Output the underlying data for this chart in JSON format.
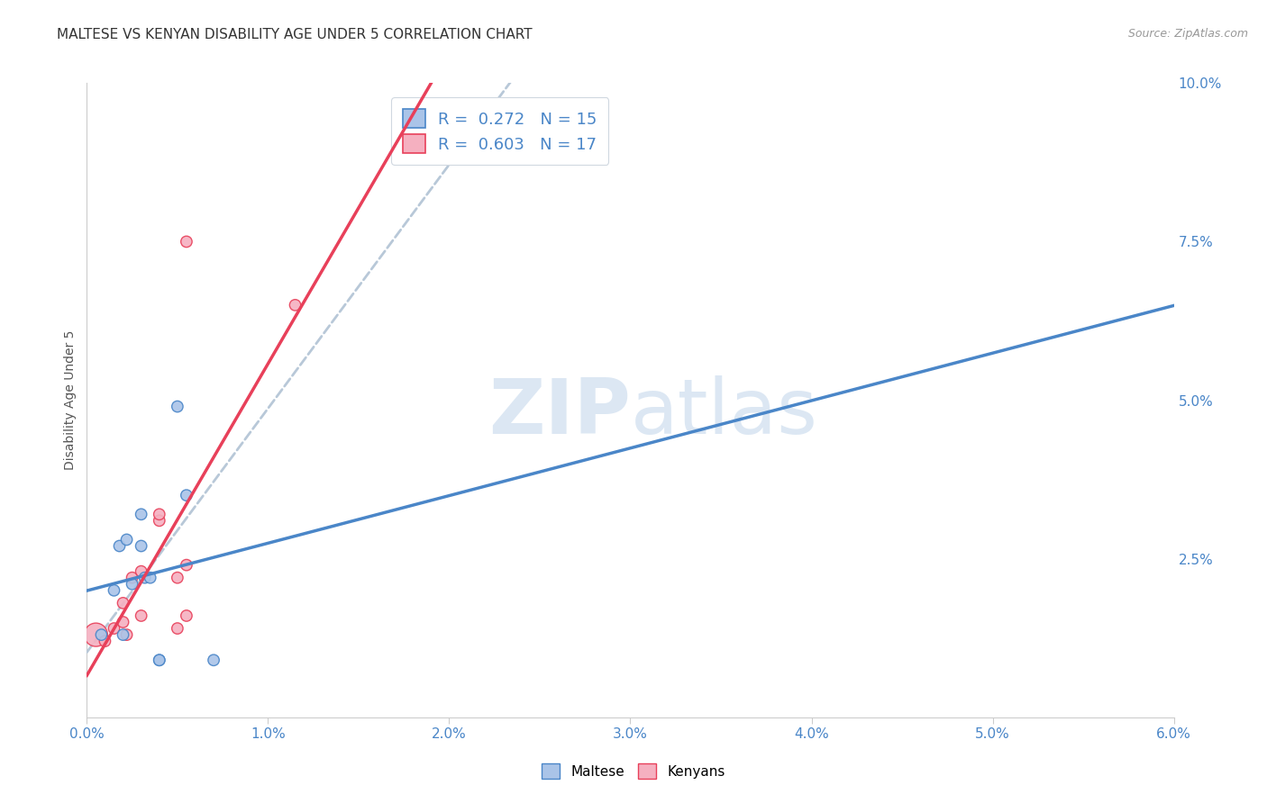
{
  "title": "MALTESE VS KENYAN DISABILITY AGE UNDER 5 CORRELATION CHART",
  "source": "Source: ZipAtlas.com",
  "ylabel": "Disability Age Under 5",
  "xlim": [
    0.0,
    0.06
  ],
  "ylim": [
    0.0,
    0.1
  ],
  "legend_bottom": [
    "Maltese",
    "Kenyans"
  ],
  "maltese_R": "0.272",
  "maltese_N": "15",
  "kenyan_R": "0.603",
  "kenyan_N": "17",
  "maltese_color": "#aac4e8",
  "kenyan_color": "#f5b0c0",
  "maltese_line_color": "#4a86c8",
  "kenyan_line_color": "#e8405a",
  "regression_line_color": "#b8c8d8",
  "background_color": "#ffffff",
  "grid_color": "#c8d4dc",
  "maltese_points_x": [
    0.0008,
    0.0015,
    0.0018,
    0.002,
    0.0022,
    0.0025,
    0.003,
    0.003,
    0.0032,
    0.0035,
    0.004,
    0.004,
    0.005,
    0.0055,
    0.007
  ],
  "maltese_points_y": [
    0.013,
    0.02,
    0.027,
    0.013,
    0.028,
    0.021,
    0.027,
    0.032,
    0.022,
    0.022,
    0.009,
    0.009,
    0.049,
    0.035,
    0.009
  ],
  "maltese_sizes": [
    80,
    80,
    80,
    80,
    80,
    80,
    80,
    80,
    80,
    80,
    80,
    80,
    80,
    80,
    80
  ],
  "kenyan_points_x": [
    0.0005,
    0.001,
    0.0015,
    0.002,
    0.002,
    0.0022,
    0.0025,
    0.003,
    0.003,
    0.004,
    0.004,
    0.005,
    0.005,
    0.0055,
    0.0055,
    0.0055,
    0.0115
  ],
  "kenyan_points_y": [
    0.013,
    0.012,
    0.014,
    0.015,
    0.018,
    0.013,
    0.022,
    0.016,
    0.023,
    0.031,
    0.032,
    0.022,
    0.014,
    0.024,
    0.075,
    0.016,
    0.065
  ],
  "kenyan_sizes": [
    350,
    80,
    80,
    80,
    80,
    80,
    80,
    80,
    80,
    80,
    80,
    80,
    80,
    80,
    80,
    80,
    80
  ],
  "watermark_line1": "ZIP",
  "watermark_line2": "atlas",
  "title_fontsize": 11,
  "axis_label_fontsize": 10,
  "tick_fontsize": 11,
  "legend_fontsize": 13
}
